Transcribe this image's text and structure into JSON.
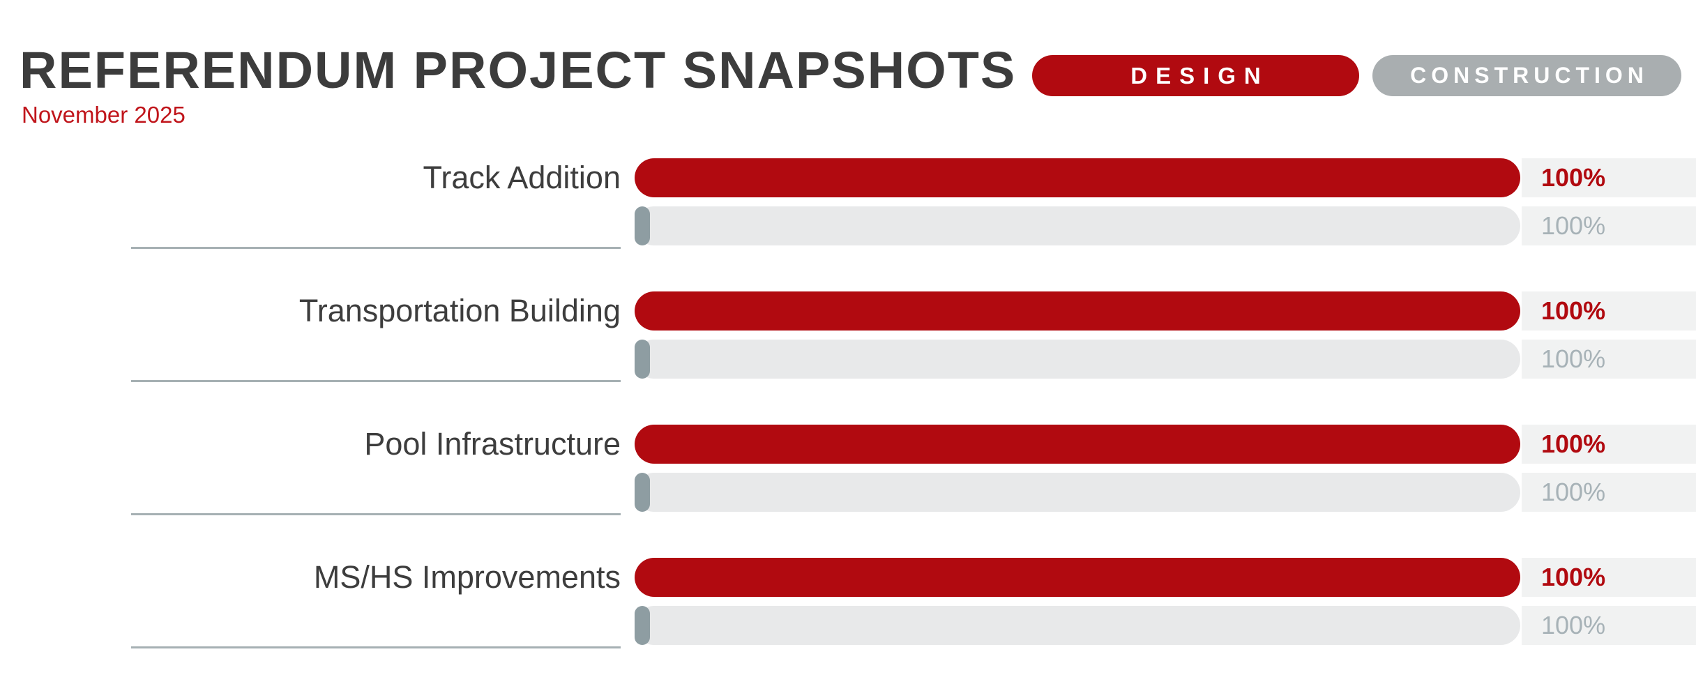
{
  "header": {
    "title": "REFERENDUM PROJECT SNAPSHOTS",
    "subtitle": "November 2025"
  },
  "legend": {
    "design": {
      "label": "DESIGN",
      "color": "#b10a10"
    },
    "construction": {
      "label": "CONSTRUCTION",
      "color": "#a9aeb0"
    }
  },
  "rows": [
    {
      "label": "Track Addition",
      "design_label": "100%",
      "construction_label": "100%"
    },
    {
      "label": "Transportation Building",
      "design_label": "100%",
      "construction_label": "100%"
    },
    {
      "label": "Pool Infrastructure",
      "design_label": "100%",
      "construction_label": "100%"
    },
    {
      "label": "MS/HS Improvements",
      "design_label": "100%",
      "construction_label": "100%"
    }
  ],
  "colors": {
    "design_red": "#b10a10",
    "construction_gray_pill": "#a9aeb0",
    "construction_fill_segment": "#8e9da2",
    "construction_track": "#e8e9ea",
    "percent_band_background": "#f1f2f2",
    "percent_gray_text": "#a7b2b7",
    "divider_gray": "#a6b0b3",
    "title_text": "#3c3c3c",
    "subtitle_red": "#c0151b"
  },
  "chart_data": {
    "type": "bar",
    "orientation": "horizontal",
    "title": "REFERENDUM PROJECT SNAPSHOTS",
    "subtitle": "November 2025",
    "categories": [
      "Track Addition",
      "Transportation Building",
      "Pool Infrastructure",
      "MS/HS Improvements"
    ],
    "series": [
      {
        "name": "DESIGN",
        "unit": "%",
        "color": "#b10a10",
        "values": [
          100,
          100,
          100,
          100
        ],
        "data_labels": [
          "100%",
          "100%",
          "100%",
          "100%"
        ]
      },
      {
        "name": "CONSTRUCTION",
        "unit": "%",
        "color": "#a9aeb0",
        "values": [
          100,
          100,
          100,
          100
        ],
        "data_labels": [
          "100%",
          "100%",
          "100%",
          "100%"
        ],
        "visible_fill_pct": [
          1.7,
          1.7,
          1.7,
          1.7
        ]
      }
    ],
    "xlim": [
      0,
      100
    ],
    "grid": false,
    "legend_position": "top-right"
  }
}
